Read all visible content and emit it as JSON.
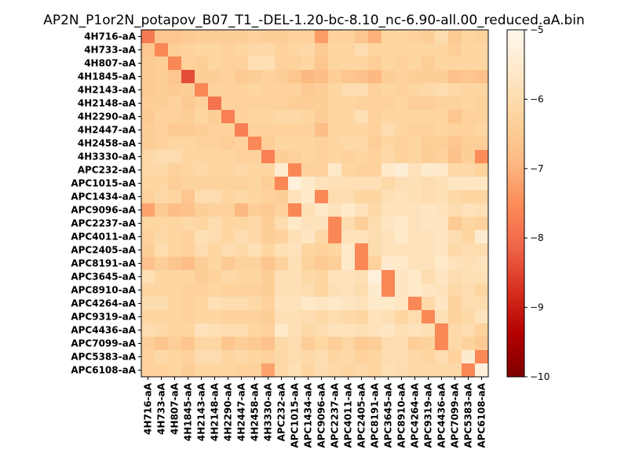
{
  "chart_data": {
    "type": "heatmap",
    "title": "AP2N_P1or2N_potapov_B07_T1_-DEL-1.20-bc-8.10_nc-6.90-all.00_reduced.aA.bin",
    "colormap": "OrRd_reversed",
    "colorbar": {
      "vmin": -10,
      "vmax": -5,
      "ticks": [
        -10,
        -9,
        -8,
        -7,
        -6,
        -5
      ],
      "tick_labels": [
        "−10",
        "−9",
        "−8",
        "−7",
        "−6",
        "−5"
      ]
    },
    "labels": [
      "4H716-aA",
      "4H733-aA",
      "4H807-aA",
      "4H1845-aA",
      "4H2143-aA",
      "4H2148-aA",
      "4H2290-aA",
      "4H2447-aA",
      "4H2458-aA",
      "4H3330-aA",
      "APC232-aA",
      "APC1015-aA",
      "APC1434-aA",
      "APC9096-aA",
      "APC2237-aA",
      "APC4011-aA",
      "APC2405-aA",
      "APC8191-aA",
      "APC3645-aA",
      "APC8910-aA",
      "APC4264-aA",
      "APC9319-aA",
      "APC4436-aA",
      "APC7099-aA",
      "APC5383-aA",
      "APC6108-aA"
    ],
    "matrix": [
      [
        -7.8,
        -6.6,
        -6.6,
        -6.5,
        -6.4,
        -6.4,
        -6.4,
        -6.4,
        -6.3,
        -6.4,
        -6.4,
        -6.3,
        -6.3,
        -7.3,
        -6.3,
        -6.3,
        -6.6,
        -7.0,
        -6.2,
        -6.2,
        -6.3,
        -6.4,
        -6.0,
        -6.5,
        -6.2,
        -6.3
      ],
      [
        -6.6,
        -7.6,
        -6.4,
        -6.3,
        -6.2,
        -6.2,
        -6.3,
        -6.2,
        -6.1,
        -6.1,
        -6.3,
        -6.2,
        -6.1,
        -6.5,
        -6.2,
        -6.2,
        -6.0,
        -6.2,
        -6.2,
        -6.2,
        -6.2,
        -6.2,
        -6.2,
        -6.4,
        -6.2,
        -6.2
      ],
      [
        -6.5,
        -6.4,
        -7.6,
        -6.3,
        -6.4,
        -6.2,
        -6.3,
        -6.3,
        -5.9,
        -5.9,
        -6.3,
        -6.3,
        -6.2,
        -6.6,
        -6.2,
        -6.2,
        -6.2,
        -6.4,
        -6.2,
        -6.3,
        -6.2,
        -6.4,
        -6.2,
        -6.2,
        -6.2,
        -6.2
      ],
      [
        -6.5,
        -6.4,
        -6.6,
        -8.4,
        -6.4,
        -6.4,
        -6.3,
        -6.5,
        -6.4,
        -6.3,
        -6.4,
        -6.6,
        -6.9,
        -6.8,
        -6.4,
        -6.6,
        -6.7,
        -6.9,
        -6.4,
        -6.3,
        -6.4,
        -6.4,
        -6.4,
        -6.7,
        -6.6,
        -6.7
      ],
      [
        -6.5,
        -6.4,
        -6.5,
        -6.4,
        -7.6,
        -6.3,
        -6.3,
        -6.3,
        -6.2,
        -6.3,
        -6.3,
        -6.3,
        -6.5,
        -6.4,
        -6.2,
        -6.0,
        -6.0,
        -6.3,
        -6.2,
        -6.3,
        -6.2,
        -6.1,
        -6.0,
        -6.1,
        -6.2,
        -6.2
      ],
      [
        -6.4,
        -6.4,
        -6.3,
        -6.5,
        -6.3,
        -7.9,
        -6.3,
        -6.3,
        -6.3,
        -6.3,
        -6.3,
        -6.4,
        -6.4,
        -6.4,
        -6.2,
        -6.2,
        -6.3,
        -6.3,
        -6.3,
        -6.2,
        -6.4,
        -6.4,
        -6.3,
        -6.3,
        -6.2,
        -6.3
      ],
      [
        -6.5,
        -6.3,
        -6.3,
        -6.4,
        -6.2,
        -6.4,
        -7.7,
        -6.3,
        -6.2,
        -6.2,
        -6.1,
        -6.1,
        -6.2,
        -6.4,
        -6.2,
        -6.2,
        -5.9,
        -6.3,
        -6.2,
        -6.2,
        -6.2,
        -6.2,
        -6.2,
        -6.6,
        -6.3,
        -6.3
      ],
      [
        -6.4,
        -6.3,
        -6.5,
        -6.5,
        -6.4,
        -6.3,
        -6.3,
        -7.7,
        -6.3,
        -6.3,
        -6.3,
        -6.3,
        -6.3,
        -6.8,
        -6.2,
        -6.2,
        -6.2,
        -6.3,
        -6.0,
        -6.2,
        -6.3,
        -6.3,
        -6.2,
        -6.3,
        -6.3,
        -6.2
      ],
      [
        -6.4,
        -6.3,
        -6.2,
        -6.2,
        -6.3,
        -6.3,
        -6.4,
        -6.3,
        -7.6,
        -6.4,
        -6.2,
        -6.2,
        -6.2,
        -6.3,
        -6.2,
        -6.1,
        -6.1,
        -6.4,
        -6.2,
        -6.3,
        -6.2,
        -6.4,
        -6.4,
        -6.6,
        -6.4,
        -6.4
      ],
      [
        -6.1,
        -6.0,
        -6.0,
        -6.2,
        -6.2,
        -6.2,
        -6.2,
        -6.3,
        -6.3,
        -7.7,
        -6.4,
        -6.3,
        -6.2,
        -6.3,
        -6.2,
        -6.3,
        -6.2,
        -6.3,
        -6.1,
        -6.3,
        -6.2,
        -6.4,
        -6.3,
        -6.7,
        -6.4,
        -7.5
      ],
      [
        -6.1,
        -6.1,
        -6.3,
        -6.2,
        -6.1,
        -6.2,
        -6.2,
        -6.1,
        -6.2,
        -6.2,
        -5.5,
        -7.6,
        -6.3,
        -6.3,
        -5.6,
        -6.2,
        -6.3,
        -6.3,
        -5.6,
        -5.4,
        -5.8,
        -5.5,
        -5.6,
        -6.1,
        -6.1,
        -6.3
      ],
      [
        -6.2,
        -6.2,
        -6.4,
        -6.3,
        -6.3,
        -6.3,
        -6.3,
        -6.3,
        -6.2,
        -6.4,
        -7.6,
        -5.3,
        -5.6,
        -5.8,
        -5.9,
        -5.9,
        -5.9,
        -5.9,
        -6.1,
        -5.9,
        -5.9,
        -6.0,
        -5.9,
        -5.7,
        -5.7,
        -5.7
      ],
      [
        -6.3,
        -6.1,
        -6.2,
        -6.6,
        -6.0,
        -6.0,
        -6.2,
        -6.1,
        -6.2,
        -6.3,
        -6.4,
        -5.8,
        -5.6,
        -7.6,
        -6.0,
        -6.0,
        -6.2,
        -6.2,
        -5.9,
        -5.8,
        -5.9,
        -6.0,
        -5.9,
        -6.1,
        -6.2,
        -6.2
      ],
      [
        -7.2,
        -6.5,
        -6.8,
        -6.7,
        -6.4,
        -6.3,
        -6.3,
        -6.9,
        -6.4,
        -6.5,
        -6.3,
        -7.6,
        -5.9,
        -5.6,
        -5.8,
        -5.6,
        -5.8,
        -6.1,
        -5.8,
        -5.8,
        -5.8,
        -5.7,
        -5.8,
        -6.0,
        -5.8,
        -5.9
      ],
      [
        -6.2,
        -6.2,
        -6.2,
        -6.1,
        -6.2,
        -6.0,
        -6.2,
        -6.2,
        -6.1,
        -6.4,
        -6.0,
        -5.6,
        -5.8,
        -5.8,
        -7.6,
        -6.0,
        -6.4,
        -6.0,
        -5.7,
        -5.6,
        -5.8,
        -5.7,
        -5.7,
        -6.5,
        -6.2,
        -6.3
      ],
      [
        -6.3,
        -6.1,
        -6.2,
        -6.3,
        -5.9,
        -6.0,
        -6.2,
        -6.0,
        -6.1,
        -6.4,
        -6.3,
        -5.9,
        -5.7,
        -6.1,
        -7.6,
        -5.8,
        -5.8,
        -6.0,
        -5.8,
        -5.6,
        -5.8,
        -5.8,
        -5.7,
        -6.0,
        -6.2,
        -5.5
      ],
      [
        -6.4,
        -6.0,
        -6.2,
        -6.3,
        -6.0,
        -6.2,
        -6.0,
        -6.1,
        -5.9,
        -6.2,
        -5.9,
        -5.8,
        -6.2,
        -6.3,
        -6.2,
        -5.6,
        -7.6,
        -6.0,
        -5.8,
        -5.8,
        -5.8,
        -5.8,
        -5.7,
        -6.1,
        -6.0,
        -6.0
      ],
      [
        -6.7,
        -6.4,
        -6.6,
        -6.8,
        -6.4,
        -6.2,
        -6.5,
        -6.3,
        -6.3,
        -6.6,
        -6.3,
        -5.9,
        -6.3,
        -6.5,
        -6.4,
        -5.6,
        -7.6,
        -6.3,
        -5.5,
        -5.6,
        -5.8,
        -5.8,
        -5.6,
        -5.8,
        -5.9,
        -5.8
      ],
      [
        -5.9,
        -6.2,
        -6.2,
        -6.2,
        -6.4,
        -6.3,
        -6.1,
        -6.2,
        -6.2,
        -6.4,
        -5.9,
        -5.9,
        -6.1,
        -6.2,
        -5.8,
        -5.8,
        -5.9,
        -5.3,
        -7.6,
        -5.7,
        -5.6,
        -6.0,
        -5.7,
        -6.0,
        -5.9,
        -5.9
      ],
      [
        -6.2,
        -6.2,
        -6.2,
        -6.3,
        -6.3,
        -6.2,
        -6.3,
        -6.3,
        -6.3,
        -6.4,
        -5.9,
        -5.9,
        -6.0,
        -6.2,
        -5.9,
        -5.8,
        -6.0,
        -5.5,
        -7.6,
        -5.7,
        -5.6,
        -5.7,
        -5.8,
        -6.1,
        -6.0,
        -6.2
      ],
      [
        -6.0,
        -6.0,
        -6.2,
        -6.3,
        -6.2,
        -5.9,
        -6.0,
        -6.0,
        -6.1,
        -6.3,
        -5.8,
        -5.8,
        -5.6,
        -5.7,
        -5.6,
        -5.7,
        -5.8,
        -5.6,
        -5.6,
        -5.7,
        -7.6,
        -6.1,
        -5.7,
        -6.3,
        -6.0,
        -6.0
      ],
      [
        -6.2,
        -6.2,
        -6.2,
        -6.3,
        -6.2,
        -6.2,
        -6.3,
        -6.3,
        -6.3,
        -6.4,
        -5.9,
        -5.9,
        -6.0,
        -6.1,
        -6.0,
        -6.1,
        -6.2,
        -5.8,
        -5.9,
        -6.2,
        -6.0,
        -7.6,
        -5.9,
        -6.3,
        -6.1,
        -5.8
      ],
      [
        -6.0,
        -6.1,
        -6.2,
        -6.2,
        -5.8,
        -5.9,
        -6.0,
        -6.0,
        -6.2,
        -6.3,
        -5.6,
        -5.9,
        -6.1,
        -6.0,
        -5.8,
        -5.8,
        -5.9,
        -5.8,
        -5.7,
        -5.9,
        -5.8,
        -5.9,
        -7.6,
        -6.1,
        -6.0,
        -6.3
      ],
      [
        -6.4,
        -6.6,
        -6.4,
        -6.6,
        -6.2,
        -6.2,
        -6.6,
        -6.4,
        -6.5,
        -6.7,
        -6.1,
        -6.0,
        -6.4,
        -6.2,
        -6.4,
        -6.2,
        -6.5,
        -6.4,
        -6.0,
        -6.0,
        -6.4,
        -6.3,
        -7.6,
        -6.1,
        -6.3,
        -6.5
      ],
      [
        -6.3,
        -6.1,
        -6.2,
        -6.3,
        -6.0,
        -6.0,
        -6.2,
        -6.1,
        -6.2,
        -6.3,
        -6.1,
        -6.0,
        -6.1,
        -6.0,
        -6.2,
        -6.1,
        -6.3,
        -6.2,
        -6.0,
        -6.0,
        -6.1,
        -6.2,
        -6.0,
        -6.3,
        -5.5,
        -7.6
      ],
      [
        -6.3,
        -6.3,
        -6.2,
        -6.4,
        -6.2,
        -6.2,
        -6.2,
        -6.3,
        -6.3,
        -7.2,
        -6.1,
        -5.9,
        -6.2,
        -6.0,
        -6.1,
        -6.2,
        -6.1,
        -6.2,
        -5.9,
        -6.0,
        -6.1,
        -6.1,
        -6.1,
        -6.1,
        -7.6,
        -5.3
      ]
    ]
  }
}
